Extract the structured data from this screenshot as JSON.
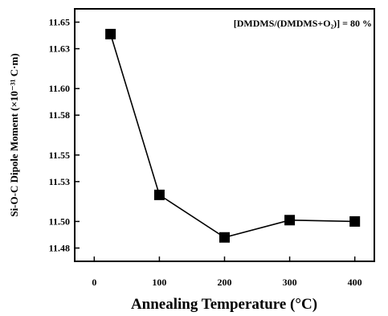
{
  "chart_data": {
    "type": "line",
    "title": "",
    "annotation": "[DMDMS/(DMDMS+O₂)] = 80 %",
    "xlabel": "Annealing Temperature (°C)",
    "ylabel": "Si-O-C Dipole Moment (×10⁻³¹ C·m)",
    "xlim": [
      -30,
      430
    ],
    "ylim": [
      11.47,
      11.66
    ],
    "xticks": [
      0,
      100,
      200,
      300,
      400
    ],
    "xtick_labels": [
      "0",
      "100",
      "200",
      "300",
      "400"
    ],
    "yticks": [
      11.48,
      11.5,
      11.53,
      11.55,
      11.58,
      11.6,
      11.63,
      11.65
    ],
    "ytick_labels": [
      "11.48",
      "11.50",
      "11.53",
      "11.55",
      "11.58",
      "11.60",
      "11.63",
      "11.65"
    ],
    "grid": false,
    "marker": "square",
    "colors": {
      "line": "#000000",
      "marker": "#000000",
      "axes": "#000000"
    },
    "series": [
      {
        "x": [
          25,
          100,
          200,
          300,
          400
        ],
        "y": [
          11.641,
          11.52,
          11.488,
          11.501,
          11.5
        ]
      }
    ]
  }
}
